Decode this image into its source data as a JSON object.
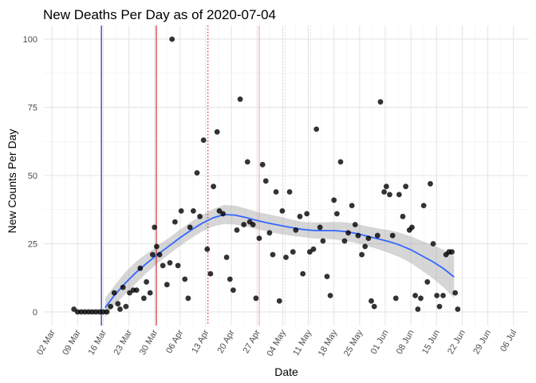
{
  "chart_data": {
    "type": "scatter",
    "title": "New Deaths Per Day as of 2020-07-04",
    "xlabel": "Date",
    "ylabel": "New Counts Per Day",
    "x_unit": "days since 2020-01-01",
    "xlim": [
      58.8,
      191.2
    ],
    "ylim": [
      -5,
      105
    ],
    "y_ticks": [
      0,
      25,
      50,
      75,
      100
    ],
    "x_ticks": [
      {
        "day": 61,
        "label": "02 Mar"
      },
      {
        "day": 68,
        "label": "09 Mar"
      },
      {
        "day": 75,
        "label": "16 Mar"
      },
      {
        "day": 82,
        "label": "23 Mar"
      },
      {
        "day": 89,
        "label": "30 Mar"
      },
      {
        "day": 96,
        "label": "06 Apr"
      },
      {
        "day": 103,
        "label": "13 Apr"
      },
      {
        "day": 110,
        "label": "20 Apr"
      },
      {
        "day": 117,
        "label": "27 Apr"
      },
      {
        "day": 124,
        "label": "04 May"
      },
      {
        "day": 131,
        "label": "11 May"
      },
      {
        "day": 138,
        "label": "18 May"
      },
      {
        "day": 145,
        "label": "25 May"
      },
      {
        "day": 152,
        "label": "01 Jun"
      },
      {
        "day": 159,
        "label": "08 Jun"
      },
      {
        "day": 166,
        "label": "15 Jun"
      },
      {
        "day": 173,
        "label": "22 Jun"
      },
      {
        "day": 180,
        "label": "29 Jun"
      },
      {
        "day": 187,
        "label": "06 Jul"
      }
    ],
    "vertical_lines": [
      {
        "day": 74.5,
        "color": "#00008b",
        "style": "solid"
      },
      {
        "day": 89.5,
        "color": "#cc0000",
        "style": "solid"
      },
      {
        "day": 103.6,
        "color": "#cc0000",
        "style": "dotted"
      },
      {
        "day": 117.6,
        "color": "#e8a0a0",
        "style": "solid"
      },
      {
        "day": 124.6,
        "color": "#f0c0c0",
        "style": "dotted"
      },
      {
        "day": 131.6,
        "color": "#f5d0d0",
        "style": "dotted"
      }
    ],
    "points": [
      [
        67,
        1
      ],
      [
        68,
        0
      ],
      [
        69,
        0
      ],
      [
        70,
        0
      ],
      [
        71,
        0
      ],
      [
        72,
        0
      ],
      [
        73,
        0
      ],
      [
        74,
        0
      ],
      [
        75,
        0
      ],
      [
        76,
        0
      ],
      [
        77,
        2
      ],
      [
        78,
        7
      ],
      [
        79,
        3
      ],
      [
        79.6,
        1
      ],
      [
        80.4,
        9
      ],
      [
        81.2,
        2
      ],
      [
        82.2,
        7
      ],
      [
        83.2,
        8
      ],
      [
        84.1,
        8
      ],
      [
        85.1,
        16
      ],
      [
        86.1,
        5
      ],
      [
        86.8,
        11
      ],
      [
        87.8,
        7
      ],
      [
        88.5,
        21
      ],
      [
        89,
        31
      ],
      [
        89.6,
        24
      ],
      [
        90.4,
        21
      ],
      [
        91.3,
        17
      ],
      [
        92.4,
        10
      ],
      [
        93.2,
        18
      ],
      [
        93.8,
        100
      ],
      [
        94.6,
        33
      ],
      [
        95.4,
        17
      ],
      [
        96.3,
        37
      ],
      [
        97.3,
        12
      ],
      [
        98.2,
        5
      ],
      [
        98.7,
        31
      ],
      [
        99.6,
        37
      ],
      [
        100.6,
        51
      ],
      [
        101.4,
        35
      ],
      [
        102.4,
        63
      ],
      [
        103.4,
        23
      ],
      [
        104.3,
        14
      ],
      [
        105.1,
        46
      ],
      [
        106.1,
        66
      ],
      [
        106.7,
        37
      ],
      [
        107.7,
        36
      ],
      [
        108.7,
        20
      ],
      [
        109.6,
        12
      ],
      [
        110.5,
        8
      ],
      [
        111.5,
        30
      ],
      [
        112.4,
        78
      ],
      [
        113.4,
        32
      ],
      [
        114.4,
        55
      ],
      [
        115,
        33
      ],
      [
        115.9,
        32
      ],
      [
        116.7,
        5
      ],
      [
        117.6,
        27
      ],
      [
        118.5,
        54
      ],
      [
        119.4,
        48
      ],
      [
        120.4,
        29
      ],
      [
        121.3,
        21
      ],
      [
        122.2,
        44
      ],
      [
        123.1,
        4
      ],
      [
        123.9,
        37
      ],
      [
        124.9,
        20
      ],
      [
        125.9,
        44
      ],
      [
        126.8,
        22
      ],
      [
        127.6,
        30
      ],
      [
        128.7,
        35
      ],
      [
        129.5,
        14
      ],
      [
        130.6,
        36
      ],
      [
        131.4,
        22
      ],
      [
        132.4,
        23
      ],
      [
        133.2,
        67
      ],
      [
        134.2,
        31
      ],
      [
        135,
        26
      ],
      [
        136.1,
        13
      ],
      [
        137,
        6
      ],
      [
        138,
        41
      ],
      [
        138.8,
        36
      ],
      [
        139.8,
        55
      ],
      [
        140.9,
        26
      ],
      [
        141.9,
        29
      ],
      [
        142.9,
        39
      ],
      [
        143.8,
        32
      ],
      [
        144.6,
        28
      ],
      [
        145.6,
        21
      ],
      [
        146.5,
        24
      ],
      [
        147.4,
        27
      ],
      [
        148.2,
        4
      ],
      [
        149,
        2
      ],
      [
        149.9,
        28
      ],
      [
        150.7,
        77
      ],
      [
        151.7,
        44
      ],
      [
        152.3,
        46
      ],
      [
        153.2,
        43
      ],
      [
        154,
        28
      ],
      [
        154.9,
        5
      ],
      [
        155.8,
        43
      ],
      [
        156.8,
        35
      ],
      [
        157.6,
        46
      ],
      [
        158.6,
        30
      ],
      [
        159.3,
        31
      ],
      [
        160.2,
        6
      ],
      [
        160.9,
        1
      ],
      [
        161.7,
        5
      ],
      [
        162.5,
        39
      ],
      [
        163.5,
        11
      ],
      [
        164.3,
        47
      ],
      [
        165.1,
        25
      ],
      [
        166.1,
        6
      ],
      [
        166.8,
        2
      ],
      [
        167.8,
        6
      ],
      [
        168.6,
        21
      ],
      [
        169.4,
        22
      ],
      [
        170.2,
        22
      ],
      [
        171.1,
        7
      ],
      [
        171.8,
        1
      ]
    ],
    "smooth": {
      "color": "#3366ff",
      "x": [
        75.5,
        78,
        81,
        84,
        87,
        90,
        93,
        96,
        99,
        102,
        105,
        108,
        111,
        114,
        117,
        120,
        123,
        126,
        129,
        132,
        135,
        138,
        141,
        144,
        147,
        150,
        153,
        156,
        159,
        162,
        165,
        168,
        170.8
      ],
      "y": [
        1.5,
        6,
        10.5,
        14.5,
        18,
        21.2,
        24.2,
        27.2,
        30,
        32.5,
        34.5,
        35.7,
        35.5,
        34.6,
        33.5,
        32.6,
        31.8,
        31,
        30.3,
        29.9,
        29.8,
        29.8,
        29.5,
        28.8,
        27.8,
        26.8,
        25.8,
        24.5,
        22.8,
        20.6,
        18.4,
        15.8,
        12.8
      ],
      "band_low": [
        -2,
        2.5,
        6.5,
        10.5,
        14.5,
        18,
        21.2,
        24.2,
        27,
        29.5,
        31.3,
        32.2,
        32,
        31.3,
        30.3,
        29.4,
        28.6,
        28,
        27.5,
        27,
        26.8,
        26.6,
        26.1,
        25.3,
        24.2,
        23,
        21.6,
        20,
        17.9,
        15.2,
        12.3,
        8.9,
        5
      ],
      "band_high": [
        5,
        9.5,
        14.5,
        18.5,
        21.5,
        24.5,
        27.2,
        30.2,
        33,
        35.5,
        37.7,
        39.2,
        39,
        37.9,
        36.7,
        35.8,
        35,
        34,
        33.1,
        32.8,
        32.8,
        33,
        32.9,
        32.3,
        31.4,
        30.6,
        30,
        29,
        27.7,
        26,
        24.5,
        22.7,
        20.6
      ]
    }
  }
}
